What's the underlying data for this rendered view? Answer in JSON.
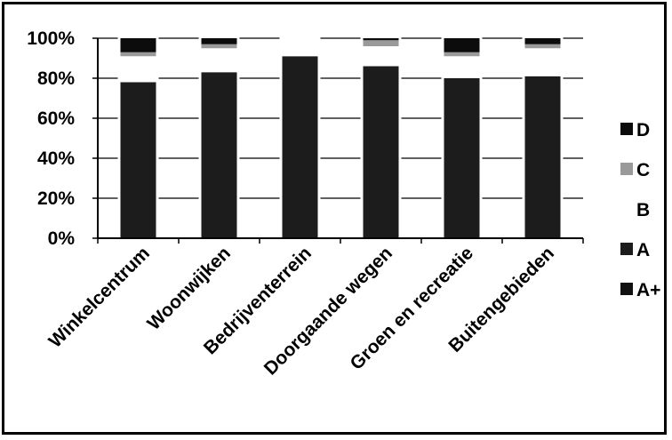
{
  "chart_data": {
    "type": "bar",
    "stacked": true,
    "percent": true,
    "categories": [
      "Winkelcentrum",
      "Woonwijken",
      "Bedrijventerrein",
      "Doorgaande wegen",
      "Groen en recreatie",
      "Buitengebieden"
    ],
    "series": [
      {
        "name": "A+",
        "color": "#111111",
        "values": [
          0,
          0,
          0,
          0,
          0,
          0
        ]
      },
      {
        "name": "A",
        "color": "#1c1c1c",
        "values": [
          78,
          83,
          91,
          86,
          80,
          81
        ]
      },
      {
        "name": "B",
        "color": "#ffffff",
        "values": [
          13,
          12,
          9,
          10,
          11,
          14
        ]
      },
      {
        "name": "C",
        "color": "#9a9a9a",
        "values": [
          2,
          2,
          0,
          3,
          2,
          2
        ]
      },
      {
        "name": "D",
        "color": "#0c0c0c",
        "values": [
          7,
          3,
          0,
          1,
          7,
          3
        ]
      }
    ],
    "ylim": [
      0,
      100
    ],
    "yticks": [
      "0%",
      "20%",
      "40%",
      "60%",
      "80%",
      "100%"
    ],
    "xlabel": "",
    "ylabel": "",
    "title": "",
    "legend_position": "right",
    "legend_order": [
      "D",
      "C",
      "B",
      "A",
      "A+"
    ],
    "grid": true
  }
}
